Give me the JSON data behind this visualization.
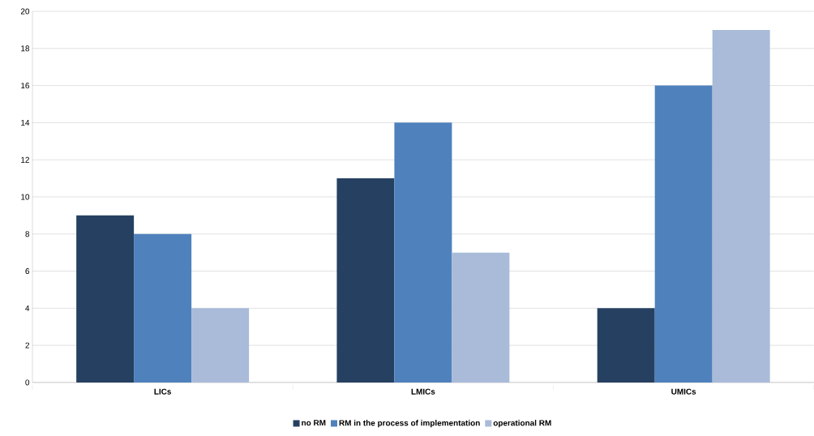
{
  "chart_data": {
    "type": "bar",
    "categories": [
      "LICs",
      "LMICs",
      "UMICs"
    ],
    "series": [
      {
        "name": "no RM",
        "color": "#264061",
        "values": [
          9,
          11,
          4
        ]
      },
      {
        "name": "RM in the process of implementation",
        "color": "#4f81bd",
        "values": [
          8,
          14,
          16
        ]
      },
      {
        "name": "operational RM",
        "color": "#a9bbd9",
        "values": [
          4,
          7,
          19
        ]
      }
    ],
    "ylim": [
      0,
      20
    ],
    "yticks": [
      0,
      2,
      4,
      6,
      8,
      10,
      12,
      14,
      16,
      18,
      20
    ],
    "grid": "y",
    "legend": "bottom"
  }
}
